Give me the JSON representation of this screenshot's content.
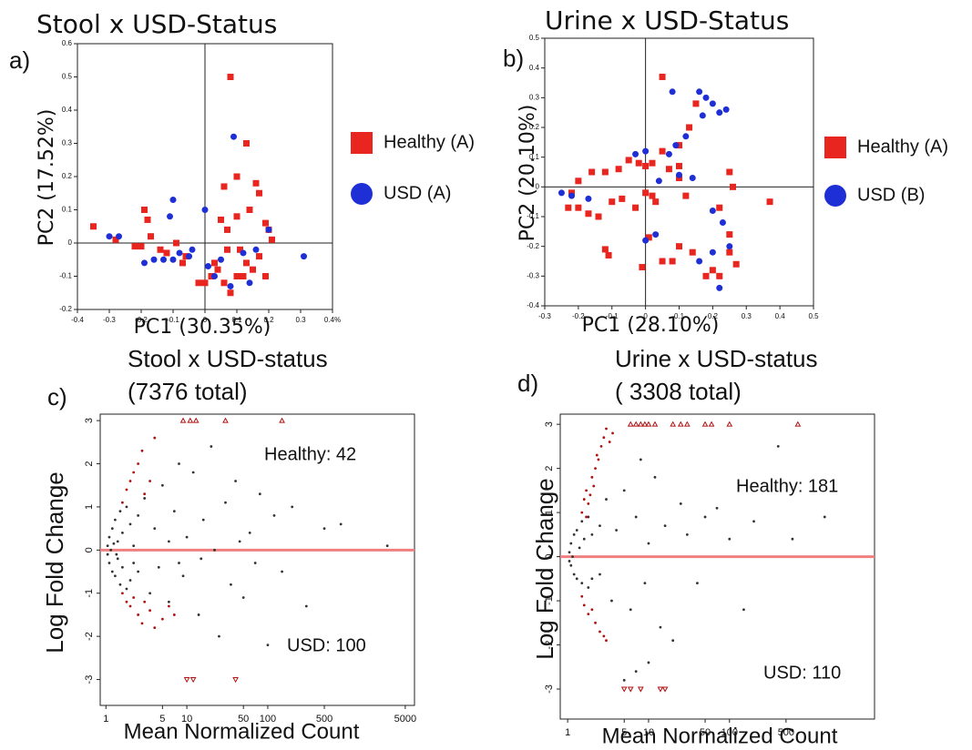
{
  "chart_data": [
    {
      "type": "scatter",
      "label": "a)",
      "title": "Stool x USD-Status",
      "xlabel": "PC1 (30.35%)",
      "ylabel": "PC2 (17.52%)",
      "xlim": [
        -0.4,
        0.4
      ],
      "xticks": [
        -0.4,
        -0.3,
        -0.2,
        -0.1,
        0.0,
        0.1,
        0.2,
        0.3,
        {
          "value": 0.4,
          "label": "0.4%"
        }
      ],
      "ylim": [
        -0.2,
        0.6
      ],
      "yticks": [
        -0.2,
        -0.1,
        0.0,
        0.1,
        0.2,
        0.3,
        0.4,
        0.5,
        0.6
      ],
      "crosshair": true,
      "series": [
        {
          "name": "Healthy (A)",
          "color": "#e8251f",
          "marker": "square",
          "x": [
            0.08,
            0.06,
            0.1,
            0.13,
            0.16,
            0.14,
            0.17,
            0.19,
            0.2,
            0.21,
            0.05,
            0.07,
            0.1,
            -0.35,
            -0.28,
            -0.22,
            -0.2,
            -0.19,
            -0.18,
            -0.17,
            -0.14,
            -0.12,
            -0.06,
            -0.02,
            0.0,
            0.02,
            0.03,
            0.04,
            0.06,
            0.08,
            0.1,
            0.12,
            0.13,
            0.15,
            0.17,
            0.19,
            0.11,
            0.07,
            -0.09,
            -0.07
          ],
          "values": [
            0.5,
            0.17,
            0.2,
            0.3,
            0.18,
            0.1,
            0.15,
            0.06,
            0.04,
            0.01,
            0.07,
            0.04,
            0.08,
            0.05,
            0.01,
            -0.01,
            -0.01,
            0.1,
            0.07,
            0.02,
            -0.02,
            -0.03,
            -0.04,
            -0.12,
            -0.12,
            -0.1,
            -0.06,
            -0.08,
            -0.12,
            -0.15,
            -0.1,
            -0.1,
            -0.06,
            -0.08,
            -0.04,
            -0.1,
            -0.02,
            -0.02,
            0.0,
            -0.06
          ]
        },
        {
          "name": "USD (A)",
          "color": "#1f2fd6",
          "marker": "circle",
          "x": [
            0.09,
            -0.1,
            -0.11,
            -0.3,
            -0.27,
            -0.19,
            -0.16,
            -0.13,
            -0.1,
            -0.05,
            -0.04,
            0.01,
            0.03,
            0.05,
            0.08,
            0.12,
            0.16,
            0.2,
            0.31,
            0.14,
            -0.08,
            0.0
          ],
          "values": [
            0.32,
            0.13,
            0.08,
            0.02,
            0.02,
            -0.06,
            -0.05,
            -0.05,
            -0.05,
            -0.04,
            -0.02,
            -0.07,
            -0.1,
            -0.05,
            -0.13,
            -0.03,
            -0.02,
            0.04,
            -0.04,
            -0.12,
            -0.03,
            0.1
          ]
        }
      ]
    },
    {
      "type": "scatter",
      "label": "b)",
      "title": "Urine x USD-Status",
      "xlabel": "PC1 (28.10%)",
      "ylabel": "PC2 (20.10%)",
      "xlim": [
        -0.3,
        0.5
      ],
      "xticks": [
        -0.3,
        -0.2,
        -0.1,
        0.0,
        0.1,
        0.2,
        0.3,
        0.4,
        0.5
      ],
      "ylim": [
        -0.4,
        0.5
      ],
      "yticks": [
        -0.4,
        -0.3,
        -0.2,
        -0.1,
        0.0,
        0.1,
        0.2,
        0.3,
        0.4,
        0.5
      ],
      "crosshair": true,
      "series": [
        {
          "name": "Healthy (A)",
          "color": "#e8251f",
          "marker": "square",
          "x": [
            0.05,
            0.15,
            0.13,
            0.1,
            0.1,
            0.07,
            0.02,
            0.0,
            -0.02,
            -0.05,
            -0.08,
            -0.12,
            -0.16,
            -0.2,
            -0.22,
            -0.23,
            -0.2,
            -0.17,
            -0.14,
            -0.1,
            -0.07,
            -0.03,
            0.0,
            0.02,
            0.03,
            0.01,
            -0.01,
            0.05,
            0.08,
            0.1,
            0.14,
            0.18,
            0.2,
            0.22,
            0.25,
            0.27,
            0.25,
            0.22,
            0.26,
            0.25,
            0.37,
            -0.12,
            -0.11,
            0.1,
            0.12,
            0.05
          ],
          "values": [
            0.37,
            0.28,
            0.2,
            0.14,
            0.07,
            0.06,
            0.08,
            0.07,
            0.08,
            0.09,
            0.06,
            0.05,
            0.05,
            0.02,
            -0.02,
            -0.07,
            -0.07,
            -0.09,
            -0.1,
            -0.05,
            -0.04,
            -0.07,
            -0.02,
            -0.03,
            -0.05,
            -0.17,
            -0.27,
            -0.25,
            -0.25,
            -0.2,
            -0.22,
            -0.3,
            -0.28,
            -0.3,
            -0.22,
            -0.26,
            -0.16,
            -0.07,
            0.0,
            0.05,
            -0.05,
            -0.21,
            -0.23,
            0.03,
            -0.03,
            0.12
          ]
        },
        {
          "name": "USD (B)",
          "color": "#1f2fd6",
          "marker": "circle",
          "x": [
            0.08,
            0.16,
            0.18,
            0.2,
            0.22,
            0.24,
            0.17,
            0.12,
            0.09,
            0.07,
            0.04,
            0.0,
            -0.03,
            0.1,
            0.14,
            -0.25,
            -0.22,
            -0.17,
            0.0,
            0.03,
            0.2,
            0.22,
            0.25,
            0.23,
            0.2,
            0.16
          ],
          "values": [
            0.32,
            0.32,
            0.3,
            0.28,
            0.25,
            0.26,
            0.24,
            0.17,
            0.14,
            0.11,
            0.02,
            0.12,
            0.11,
            0.04,
            0.03,
            -0.02,
            -0.03,
            -0.04,
            -0.18,
            -0.16,
            -0.22,
            -0.34,
            -0.2,
            -0.12,
            -0.08,
            -0.25
          ]
        }
      ]
    },
    {
      "type": "ma",
      "label": "c)",
      "title": "Stool x USD-status",
      "subtitle": "(7376 total)",
      "xlabel": "Mean Normalized Count",
      "ylabel": "Log Fold Change",
      "xlim": [
        0.85,
        6500
      ],
      "xscale": "log",
      "xticks": [
        1,
        5,
        10,
        50,
        100,
        500,
        5000
      ],
      "ylim": [
        -3.6,
        3.15
      ],
      "yticks": [
        -3,
        -2,
        -1,
        0,
        1,
        2,
        3
      ],
      "reference_line": {
        "y": 0,
        "color": "#f08080"
      },
      "annotations": [
        "Healthy: 42",
        "USD: 100"
      ],
      "series": [
        {
          "color": "#333333",
          "marker": "dot",
          "x": [
            1.1,
            1.1,
            1.2,
            1.2,
            1.3,
            1.3,
            1.4,
            1.4,
            1.5,
            1.5,
            1.6,
            1.6,
            1.8,
            1.8,
            2,
            2,
            2.2,
            2.2,
            2.5,
            2.5,
            1.05,
            1.05,
            1.15,
            1.25,
            1.35,
            3,
            3.5,
            4,
            4.5,
            5,
            6,
            7,
            8,
            9,
            10,
            12,
            14,
            16,
            20,
            25,
            30,
            35,
            40,
            50,
            60,
            80,
            100,
            120,
            150,
            200,
            300,
            500,
            800,
            3000,
            6,
            8,
            15,
            22,
            45,
            70
          ],
          "values": [
            0.3,
            -0.3,
            0.5,
            -0.5,
            0.7,
            -0.6,
            0.2,
            -0.2,
            0.9,
            -0.8,
            0.4,
            -0.4,
            1.0,
            -0.9,
            0.6,
            -0.7,
            0.1,
            -0.3,
            0.8,
            -0.5,
            0.1,
            -0.1,
            0,
            0.15,
            -0.1,
            1.2,
            -1.0,
            0.5,
            -0.4,
            1.5,
            -1.2,
            0.9,
            2.0,
            -0.6,
            0.3,
            1.8,
            -1.5,
            0.7,
            2.4,
            -2.0,
            1.1,
            -0.8,
            1.6,
            -1.1,
            0.4,
            1.3,
            -2.2,
            0.8,
            -0.5,
            1.0,
            -1.3,
            0.5,
            0.6,
            0.1,
            0.2,
            -0.3,
            -0.2,
            0.0,
            0.2,
            -0.3
          ]
        },
        {
          "color": "#b01010",
          "marker": "dot",
          "x": [
            1.6,
            1.8,
            2,
            2.2,
            2.5,
            2.8,
            3,
            3.5,
            4,
            1.6,
            1.8,
            2,
            2.2,
            2.5,
            2.8,
            3,
            3.5,
            4,
            5,
            6,
            7
          ],
          "values": [
            1.1,
            1.4,
            1.6,
            1.8,
            2.0,
            2.3,
            1.3,
            1.6,
            2.6,
            -1.0,
            -1.2,
            -1.3,
            -1.1,
            -1.5,
            -1.7,
            -1.2,
            -1.4,
            -1.8,
            -1.6,
            -1.3,
            -1.5
          ]
        },
        {
          "color": "#b01010",
          "marker": "triangle",
          "x": [
            9,
            11,
            13,
            30,
            150,
            10,
            12,
            40
          ],
          "values": [
            3,
            3,
            3,
            3,
            3,
            -3,
            -3,
            -3
          ]
        }
      ]
    },
    {
      "type": "ma",
      "label": "d)",
      "title": "Urine x USD-status",
      "subtitle": "( 3308 total)",
      "xlabel": "Mean Normalized Count",
      "ylabel": "Log Fold Change",
      "xlim": [
        0.81,
        6200
      ],
      "xscale": "log",
      "xticks": [
        1,
        5,
        10,
        50,
        100,
        500
      ],
      "ylim": [
        -3.68,
        3.23
      ],
      "yticks": [
        -3,
        -2,
        -1,
        0,
        1,
        2,
        3
      ],
      "reference_line": {
        "y": 0,
        "color": "#f08080"
      },
      "annotations": [
        "Healthy: 181",
        "USD: 110"
      ],
      "series": [
        {
          "color": "#333333",
          "marker": "dot",
          "x": [
            1.1,
            1.1,
            1.2,
            1.2,
            1.3,
            1.3,
            1.4,
            1.5,
            1.5,
            1.6,
            1.8,
            1.8,
            2,
            2,
            2.5,
            2.5,
            1.05,
            1.05,
            1.15,
            3,
            3.5,
            4,
            5,
            6,
            7,
            8,
            9,
            10,
            12,
            14,
            16,
            20,
            25,
            30,
            40,
            50,
            70,
            100,
            150,
            200,
            400,
            600,
            1500,
            5,
            7,
            10
          ],
          "values": [
            0.3,
            -0.2,
            0.5,
            -0.4,
            0.6,
            -0.5,
            0.2,
            0.8,
            -0.6,
            0.4,
            0.9,
            -0.7,
            0.5,
            -0.5,
            0.7,
            -0.4,
            0.1,
            -0.1,
            0,
            1.3,
            -1.0,
            0.6,
            1.5,
            -1.2,
            0.9,
            2.2,
            -0.6,
            0.3,
            1.8,
            -1.6,
            0.7,
            -1.9,
            1.2,
            0.5,
            -0.6,
            0.9,
            1.1,
            0.4,
            -1.2,
            0.8,
            2.5,
            0.4,
            0.9,
            -2.8,
            -2.6,
            -2.4
          ]
        },
        {
          "color": "#b01010",
          "marker": "dot",
          "x": [
            1.5,
            1.6,
            1.7,
            1.8,
            2,
            2.2,
            2.4,
            2.6,
            2.8,
            3,
            3.3,
            3.6,
            1.7,
            1.9,
            2.1,
            2.3,
            1.5,
            1.6,
            1.8,
            2,
            2.2,
            2.5,
            2.8,
            3
          ],
          "values": [
            1.0,
            1.3,
            1.5,
            1.2,
            1.8,
            2.0,
            2.2,
            2.5,
            2.7,
            2.9,
            2.6,
            2.8,
            0.9,
            1.4,
            1.6,
            2.3,
            -0.9,
            -1.1,
            -1.3,
            -1.2,
            -1.5,
            -1.7,
            -1.8,
            -1.9
          ]
        },
        {
          "color": "#b01010",
          "marker": "triangle",
          "x": [
            6,
            7,
            8,
            9,
            10,
            12,
            20,
            25,
            30,
            50,
            60,
            100,
            700,
            5,
            6,
            8,
            14,
            16
          ],
          "values": [
            3,
            3,
            3,
            3,
            3,
            3,
            3,
            3,
            3,
            3,
            3,
            3,
            3,
            -3,
            -3,
            -3,
            -3,
            -3
          ]
        }
      ]
    }
  ]
}
